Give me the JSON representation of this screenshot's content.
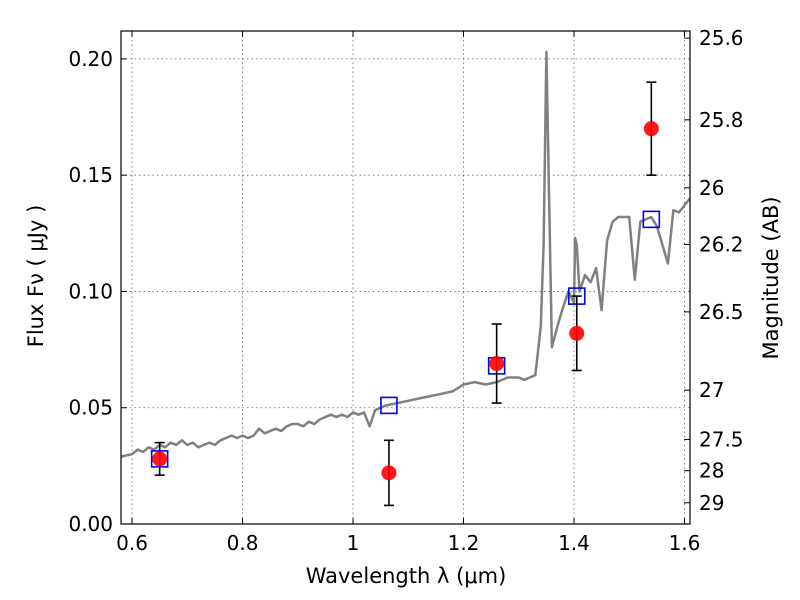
{
  "chart_data": {
    "type": "scatter",
    "title": "",
    "xlabel": "Wavelength  λ (μm)",
    "ylabel": "Flux  Fν  ( μJy )",
    "ylabel_right": "Magnitude (AB)",
    "xlim": [
      0.58,
      1.61
    ],
    "ylim": [
      0.0,
      0.212
    ],
    "grid": true,
    "x_ticks": [
      {
        "value": 0.6,
        "label": "0.6"
      },
      {
        "value": 0.8,
        "label": "0.8"
      },
      {
        "value": 1.0,
        "label": "1"
      },
      {
        "value": 1.2,
        "label": "1.2"
      },
      {
        "value": 1.4,
        "label": "1.4"
      },
      {
        "value": 1.6,
        "label": "1.6"
      }
    ],
    "y_ticks": [
      {
        "value": 0.0,
        "label": "0.00"
      },
      {
        "value": 0.05,
        "label": "0.05"
      },
      {
        "value": 0.1,
        "label": "0.10"
      },
      {
        "value": 0.15,
        "label": "0.15"
      },
      {
        "value": 0.2,
        "label": "0.20"
      }
    ],
    "right_ticks": [
      {
        "mag": 25.6,
        "label": "25.6"
      },
      {
        "mag": 25.8,
        "label": "25.8"
      },
      {
        "mag": 26.0,
        "label": "26"
      },
      {
        "mag": 26.2,
        "label": "26.2"
      },
      {
        "mag": 26.5,
        "label": "26.5"
      },
      {
        "mag": 27.0,
        "label": "27"
      },
      {
        "mag": 27.5,
        "label": "27.5"
      },
      {
        "mag": 28.0,
        "label": "28"
      },
      {
        "mag": 29.0,
        "label": "29"
      }
    ],
    "series": [
      {
        "kind": "model_spectrum",
        "color": "#808080",
        "x": [
          0.58,
          0.6,
          0.61,
          0.62,
          0.63,
          0.64,
          0.65,
          0.66,
          0.67,
          0.68,
          0.69,
          0.7,
          0.71,
          0.72,
          0.73,
          0.74,
          0.75,
          0.76,
          0.77,
          0.78,
          0.79,
          0.8,
          0.81,
          0.82,
          0.83,
          0.84,
          0.85,
          0.86,
          0.87,
          0.88,
          0.89,
          0.9,
          0.91,
          0.92,
          0.93,
          0.94,
          0.95,
          0.96,
          0.97,
          0.98,
          0.99,
          1.0,
          1.01,
          1.02,
          1.03,
          1.04,
          1.05,
          1.06,
          1.08,
          1.1,
          1.12,
          1.14,
          1.16,
          1.18,
          1.2,
          1.22,
          1.24,
          1.26,
          1.28,
          1.3,
          1.31,
          1.32,
          1.33,
          1.34,
          1.345,
          1.35,
          1.355,
          1.36,
          1.37,
          1.38,
          1.39,
          1.4,
          1.402,
          1.405,
          1.41,
          1.42,
          1.43,
          1.44,
          1.45,
          1.46,
          1.47,
          1.48,
          1.49,
          1.5,
          1.51,
          1.52,
          1.53,
          1.54,
          1.55,
          1.56,
          1.57,
          1.58,
          1.59,
          1.6,
          1.61
        ],
        "y": [
          0.029,
          0.03,
          0.032,
          0.031,
          0.033,
          0.032,
          0.034,
          0.033,
          0.035,
          0.034,
          0.036,
          0.034,
          0.035,
          0.033,
          0.034,
          0.035,
          0.034,
          0.036,
          0.037,
          0.038,
          0.037,
          0.038,
          0.037,
          0.038,
          0.041,
          0.039,
          0.04,
          0.041,
          0.04,
          0.042,
          0.043,
          0.043,
          0.042,
          0.044,
          0.043,
          0.045,
          0.046,
          0.047,
          0.046,
          0.047,
          0.046,
          0.048,
          0.047,
          0.048,
          0.042,
          0.049,
          0.05,
          0.051,
          0.052,
          0.053,
          0.054,
          0.055,
          0.056,
          0.057,
          0.06,
          0.061,
          0.06,
          0.061,
          0.063,
          0.063,
          0.062,
          0.063,
          0.064,
          0.085,
          0.12,
          0.203,
          0.14,
          0.076,
          0.085,
          0.093,
          0.1,
          0.095,
          0.123,
          0.12,
          0.1,
          0.107,
          0.104,
          0.11,
          0.092,
          0.122,
          0.13,
          0.132,
          0.132,
          0.132,
          0.105,
          0.13,
          0.131,
          0.132,
          0.128,
          0.12,
          0.112,
          0.135,
          0.134,
          0.137,
          0.14
        ]
      },
      {
        "kind": "synthetic_photometry",
        "marker": "open-square",
        "color": "#0000ff",
        "x": [
          0.65,
          1.065,
          1.26,
          1.405,
          1.54
        ],
        "y": [
          0.028,
          0.051,
          0.068,
          0.098,
          0.131
        ]
      },
      {
        "kind": "observed_photometry",
        "marker": "filled-circle",
        "color": "#ff0000",
        "x": [
          0.65,
          1.065,
          1.26,
          1.405,
          1.54
        ],
        "y": [
          0.028,
          0.022,
          0.069,
          0.082,
          0.17
        ],
        "yerr": [
          0.007,
          0.014,
          0.017,
          0.016,
          0.02
        ]
      }
    ]
  }
}
